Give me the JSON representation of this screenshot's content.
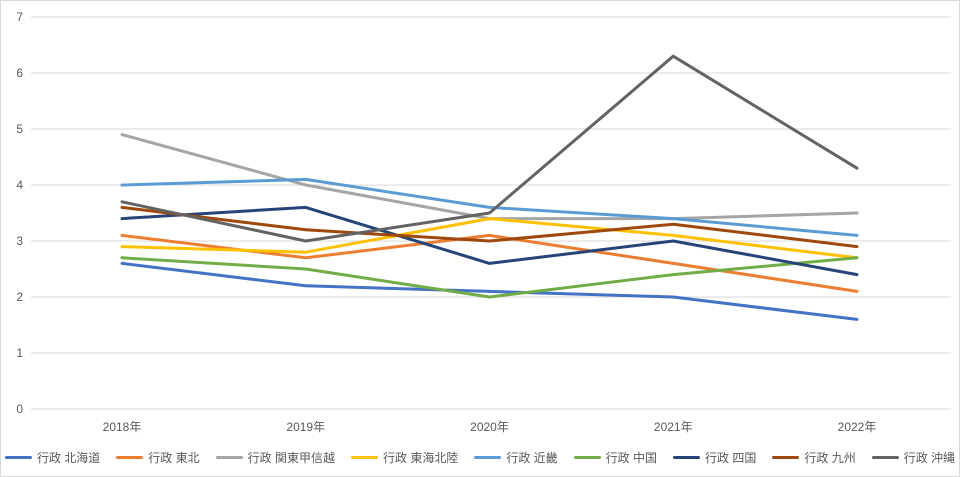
{
  "chart_data": {
    "type": "line",
    "title": "",
    "categories": [
      "2018年",
      "2019年",
      "2020年",
      "2021年",
      "2022年"
    ],
    "series": [
      {
        "name": "行政 北海道",
        "color": "#4472C4",
        "values": [
          2.6,
          2.2,
          2.1,
          2.0,
          1.6
        ]
      },
      {
        "name": "行政 東北",
        "color": "#ED7D31",
        "values": [
          3.1,
          2.7,
          3.1,
          2.6,
          2.1
        ]
      },
      {
        "name": "行政 関東甲信越",
        "color": "#A5A5A5",
        "values": [
          4.9,
          4.0,
          3.4,
          3.4,
          3.5
        ]
      },
      {
        "name": "行政 東海北陸",
        "color": "#FFC000",
        "values": [
          2.9,
          2.8,
          3.4,
          3.1,
          2.7
        ]
      },
      {
        "name": "行政 近畿",
        "color": "#5B9BD5",
        "values": [
          4.0,
          4.1,
          3.6,
          3.4,
          3.1
        ]
      },
      {
        "name": "行政 中国",
        "color": "#70AD47",
        "values": [
          2.7,
          2.5,
          2.0,
          2.4,
          2.7
        ]
      },
      {
        "name": "行政 四国",
        "color": "#264478",
        "values": [
          3.4,
          3.6,
          2.6,
          3.0,
          2.4
        ]
      },
      {
        "name": "行政 九州",
        "color": "#9E480E",
        "values": [
          3.6,
          3.2,
          3.0,
          3.3,
          2.9
        ]
      },
      {
        "name": "行政 沖縄",
        "color": "#636363",
        "values": [
          3.7,
          3.0,
          3.5,
          6.3,
          4.3
        ]
      }
    ],
    "xlabel": "",
    "ylabel": "",
    "ylim": [
      0,
      7
    ],
    "yticks": [
      0,
      1,
      2,
      3,
      4,
      5,
      6,
      7
    ],
    "grid": true,
    "legend_position": "bottom",
    "gridline_color": "#D9D9D9",
    "axis_text_color": "#595959"
  }
}
